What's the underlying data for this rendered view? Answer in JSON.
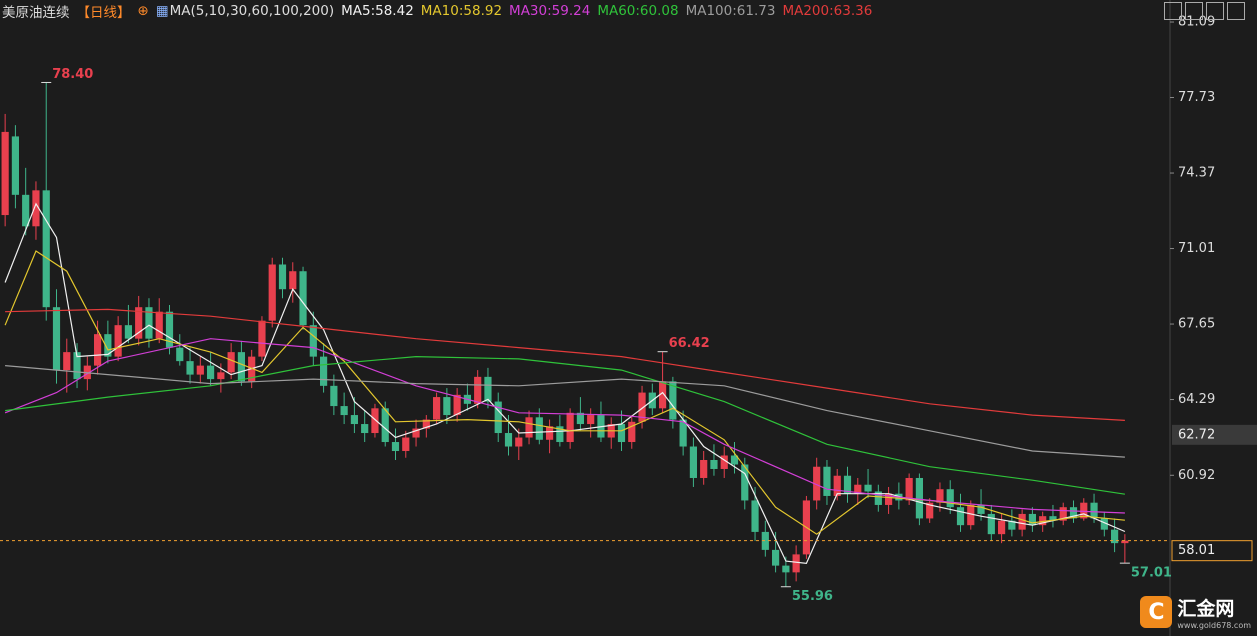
{
  "chart_data": {
    "type": "candlestick",
    "title": "美原油连续",
    "period": "【日线】",
    "indicator": "MA(5,10,30,60,100,200)",
    "up_color": "#e8404e",
    "down_color": "#3fb58a",
    "ylim": [
      54.48,
      82.07
    ],
    "yticks": [
      81.09,
      77.73,
      74.37,
      71.01,
      67.65,
      64.29,
      60.92
    ],
    "candles": [
      [
        72.5,
        77.0,
        72.0,
        76.2
      ],
      [
        76.0,
        76.5,
        72.8,
        73.4
      ],
      [
        73.4,
        74.6,
        71.6,
        72.0
      ],
      [
        72.0,
        74.0,
        71.4,
        73.6
      ],
      [
        73.6,
        78.4,
        67.8,
        68.4
      ],
      [
        68.4,
        69.2,
        65.0,
        65.6
      ],
      [
        65.6,
        67.0,
        64.6,
        66.4
      ],
      [
        66.4,
        66.8,
        64.8,
        65.2
      ],
      [
        65.2,
        66.2,
        64.7,
        65.8
      ],
      [
        65.8,
        67.8,
        65.4,
        67.2
      ],
      [
        67.2,
        67.8,
        65.9,
        66.2
      ],
      [
        66.2,
        68.0,
        66.0,
        67.6
      ],
      [
        67.6,
        68.5,
        66.8,
        67.0
      ],
      [
        67.0,
        68.9,
        66.7,
        68.4
      ],
      [
        68.4,
        68.8,
        66.6,
        67.0
      ],
      [
        67.0,
        68.8,
        66.8,
        68.2
      ],
      [
        68.2,
        68.5,
        66.3,
        66.6
      ],
      [
        66.6,
        67.2,
        65.8,
        66.0
      ],
      [
        66.0,
        66.6,
        65.0,
        65.4
      ],
      [
        65.4,
        66.2,
        65.0,
        65.8
      ],
      [
        65.8,
        66.4,
        64.9,
        65.2
      ],
      [
        65.2,
        65.9,
        64.6,
        65.5
      ],
      [
        65.5,
        66.8,
        65.2,
        66.4
      ],
      [
        66.4,
        66.9,
        64.9,
        65.1
      ],
      [
        65.1,
        66.5,
        64.8,
        66.2
      ],
      [
        66.2,
        68.0,
        66.0,
        67.8
      ],
      [
        67.8,
        70.6,
        67.5,
        70.3
      ],
      [
        70.3,
        70.6,
        68.8,
        69.2
      ],
      [
        69.2,
        70.4,
        68.6,
        70.0
      ],
      [
        70.0,
        70.2,
        67.4,
        67.6
      ],
      [
        67.6,
        68.2,
        65.8,
        66.2
      ],
      [
        66.2,
        66.8,
        64.6,
        64.9
      ],
      [
        64.9,
        65.4,
        63.6,
        64.0
      ],
      [
        64.0,
        64.6,
        63.2,
        63.6
      ],
      [
        63.6,
        64.4,
        62.8,
        63.2
      ],
      [
        63.2,
        63.8,
        62.4,
        62.8
      ],
      [
        62.8,
        64.1,
        62.6,
        63.9
      ],
      [
        63.9,
        64.2,
        62.2,
        62.4
      ],
      [
        62.4,
        63.0,
        61.6,
        62.0
      ],
      [
        62.0,
        62.9,
        61.7,
        62.6
      ],
      [
        62.6,
        63.4,
        62.2,
        63.0
      ],
      [
        63.0,
        63.6,
        62.6,
        63.4
      ],
      [
        63.4,
        64.6,
        63.2,
        64.4
      ],
      [
        64.4,
        64.8,
        63.2,
        63.6
      ],
      [
        63.6,
        64.8,
        63.3,
        64.5
      ],
      [
        64.5,
        65.0,
        63.8,
        64.1
      ],
      [
        64.1,
        65.6,
        63.9,
        65.3
      ],
      [
        65.3,
        65.7,
        63.9,
        64.2
      ],
      [
        64.2,
        64.6,
        62.4,
        62.8
      ],
      [
        62.8,
        63.6,
        61.8,
        62.2
      ],
      [
        62.2,
        63.0,
        61.6,
        62.6
      ],
      [
        62.6,
        63.8,
        62.3,
        63.5
      ],
      [
        63.5,
        63.9,
        62.3,
        62.5
      ],
      [
        62.5,
        63.4,
        61.9,
        63.1
      ],
      [
        63.1,
        63.6,
        62.2,
        62.4
      ],
      [
        62.4,
        63.9,
        62.1,
        63.7
      ],
      [
        63.7,
        64.4,
        62.9,
        63.2
      ],
      [
        63.2,
        63.9,
        62.6,
        63.6
      ],
      [
        63.6,
        64.2,
        62.4,
        62.6
      ],
      [
        62.6,
        63.5,
        62.1,
        63.2
      ],
      [
        63.2,
        63.8,
        62.0,
        62.4
      ],
      [
        62.4,
        63.6,
        62.1,
        63.3
      ],
      [
        63.3,
        64.9,
        63.0,
        64.6
      ],
      [
        64.6,
        65.0,
        63.6,
        63.9
      ],
      [
        63.9,
        66.42,
        63.7,
        65.1
      ],
      [
        65.1,
        65.3,
        63.0,
        63.4
      ],
      [
        63.4,
        63.8,
        61.8,
        62.2
      ],
      [
        62.2,
        62.6,
        60.4,
        60.8
      ],
      [
        60.8,
        62.0,
        60.5,
        61.6
      ],
      [
        61.6,
        62.3,
        60.9,
        61.2
      ],
      [
        61.2,
        62.2,
        60.8,
        61.8
      ],
      [
        61.8,
        62.4,
        61.0,
        61.4
      ],
      [
        61.4,
        61.7,
        59.4,
        59.8
      ],
      [
        59.8,
        60.4,
        58.0,
        58.4
      ],
      [
        58.4,
        58.9,
        57.3,
        57.6
      ],
      [
        57.6,
        58.4,
        56.6,
        56.9
      ],
      [
        56.9,
        57.3,
        55.96,
        56.6
      ],
      [
        56.6,
        57.8,
        56.2,
        57.4
      ],
      [
        57.4,
        60.0,
        57.2,
        59.8
      ],
      [
        59.8,
        61.7,
        59.4,
        61.3
      ],
      [
        61.3,
        61.6,
        59.6,
        60.0
      ],
      [
        60.0,
        61.2,
        59.8,
        60.9
      ],
      [
        60.9,
        61.3,
        59.7,
        60.1
      ],
      [
        60.1,
        60.8,
        59.6,
        60.5
      ],
      [
        60.5,
        61.2,
        59.9,
        60.2
      ],
      [
        60.2,
        60.5,
        59.3,
        59.6
      ],
      [
        59.6,
        60.4,
        59.2,
        60.1
      ],
      [
        60.1,
        60.6,
        59.4,
        59.8
      ],
      [
        59.8,
        61.0,
        59.6,
        60.8
      ],
      [
        60.8,
        61.0,
        58.7,
        59.0
      ],
      [
        59.0,
        59.9,
        58.8,
        59.7
      ],
      [
        59.7,
        60.6,
        59.3,
        60.3
      ],
      [
        60.3,
        60.7,
        59.2,
        59.5
      ],
      [
        59.5,
        60.1,
        58.4,
        58.7
      ],
      [
        58.7,
        59.8,
        58.5,
        59.6
      ],
      [
        59.6,
        60.3,
        58.9,
        59.2
      ],
      [
        59.2,
        59.6,
        58.0,
        58.3
      ],
      [
        58.3,
        59.2,
        57.9,
        58.9
      ],
      [
        58.9,
        59.4,
        58.2,
        58.5
      ],
      [
        58.5,
        59.4,
        58.2,
        59.2
      ],
      [
        59.2,
        59.5,
        58.4,
        58.7
      ],
      [
        58.7,
        59.3,
        58.4,
        59.1
      ],
      [
        59.1,
        59.6,
        58.6,
        58.9
      ],
      [
        58.9,
        59.7,
        58.7,
        59.5
      ],
      [
        59.5,
        59.8,
        58.8,
        59.0
      ],
      [
        59.0,
        59.9,
        58.9,
        59.7
      ],
      [
        59.7,
        60.1,
        58.8,
        59.0
      ],
      [
        59.0,
        59.3,
        58.2,
        58.5
      ],
      [
        58.5,
        59.0,
        57.5,
        57.9
      ],
      [
        57.9,
        58.3,
        57.01,
        58.01
      ]
    ],
    "series": [
      {
        "name": "MA5:58.42",
        "color": "#f0f0f0",
        "x": [
          0,
          3,
          5,
          7,
          10,
          14,
          18,
          22,
          25,
          28,
          31,
          34,
          38,
          42,
          47,
          50,
          55,
          60,
          64,
          68,
          72,
          76,
          78,
          81,
          86,
          90,
          95,
          100,
          105,
          109
        ],
        "values": [
          69.5,
          73.0,
          71.5,
          66.2,
          66.3,
          67.6,
          66.5,
          65.4,
          65.8,
          69.2,
          67.4,
          64.2,
          62.6,
          63.2,
          64.3,
          62.8,
          62.9,
          63.2,
          64.6,
          62.2,
          61.0,
          57.1,
          57.0,
          60.1,
          60.1,
          59.6,
          59.1,
          58.7,
          59.2,
          58.42
        ]
      },
      {
        "name": "MA10:58.92",
        "color": "#e3c72e",
        "x": [
          0,
          3,
          6,
          10,
          15,
          20,
          25,
          29,
          33,
          38,
          45,
          50,
          55,
          60,
          65,
          70,
          75,
          79,
          84,
          90,
          95,
          100,
          105,
          109
        ],
        "values": [
          67.6,
          70.9,
          70.0,
          66.5,
          67.0,
          66.4,
          65.5,
          67.5,
          66.0,
          63.3,
          63.4,
          63.3,
          62.9,
          62.9,
          63.9,
          62.5,
          59.5,
          58.3,
          60.0,
          59.8,
          59.5,
          58.8,
          59.1,
          58.92
        ]
      },
      {
        "name": "MA30:59.24",
        "color": "#d23fd6",
        "x": [
          0,
          5,
          10,
          20,
          30,
          40,
          50,
          60,
          66,
          70,
          80,
          90,
          100,
          109
        ],
        "values": [
          63.7,
          64.6,
          66.0,
          67.0,
          66.6,
          64.9,
          63.7,
          63.6,
          63.3,
          62.3,
          60.3,
          59.8,
          59.4,
          59.24
        ]
      },
      {
        "name": "MA60:60.08",
        "color": "#2fc23a",
        "x": [
          0,
          10,
          20,
          30,
          40,
          50,
          60,
          70,
          80,
          90,
          100,
          109
        ],
        "values": [
          63.8,
          64.4,
          64.9,
          65.8,
          66.2,
          66.1,
          65.6,
          64.2,
          62.3,
          61.3,
          60.7,
          60.08
        ]
      },
      {
        "name": "MA100:61.73",
        "color": "#9c9c9c",
        "x": [
          0,
          10,
          20,
          30,
          40,
          50,
          60,
          70,
          80,
          90,
          100,
          109
        ],
        "values": [
          65.8,
          65.4,
          65.0,
          65.2,
          65.0,
          64.9,
          65.2,
          64.9,
          63.8,
          62.9,
          62.0,
          61.73
        ]
      },
      {
        "name": "MA200:63.36",
        "color": "#e23b3b",
        "x": [
          0,
          10,
          20,
          30,
          40,
          50,
          60,
          70,
          80,
          90,
          100,
          109
        ],
        "values": [
          68.2,
          68.3,
          68.0,
          67.5,
          67.0,
          66.6,
          66.2,
          65.5,
          64.8,
          64.1,
          63.6,
          63.36
        ]
      }
    ],
    "annotations": [
      {
        "x": 4,
        "value": 78.4,
        "label": "78.40",
        "color": "#e8404e"
      },
      {
        "x": 64,
        "value": 66.42,
        "label": "66.42",
        "color": "#e8404e"
      },
      {
        "x": 76,
        "value": 55.96,
        "label": "55.96",
        "color": "#3fb58a"
      },
      {
        "x": 109,
        "value": 57.01,
        "label": "57.01",
        "color": "#3fb58a"
      }
    ],
    "last_price": 58.01,
    "marker_price": 62.72
  },
  "logo": {
    "name": "汇金网",
    "url": "www.gold678.com"
  }
}
